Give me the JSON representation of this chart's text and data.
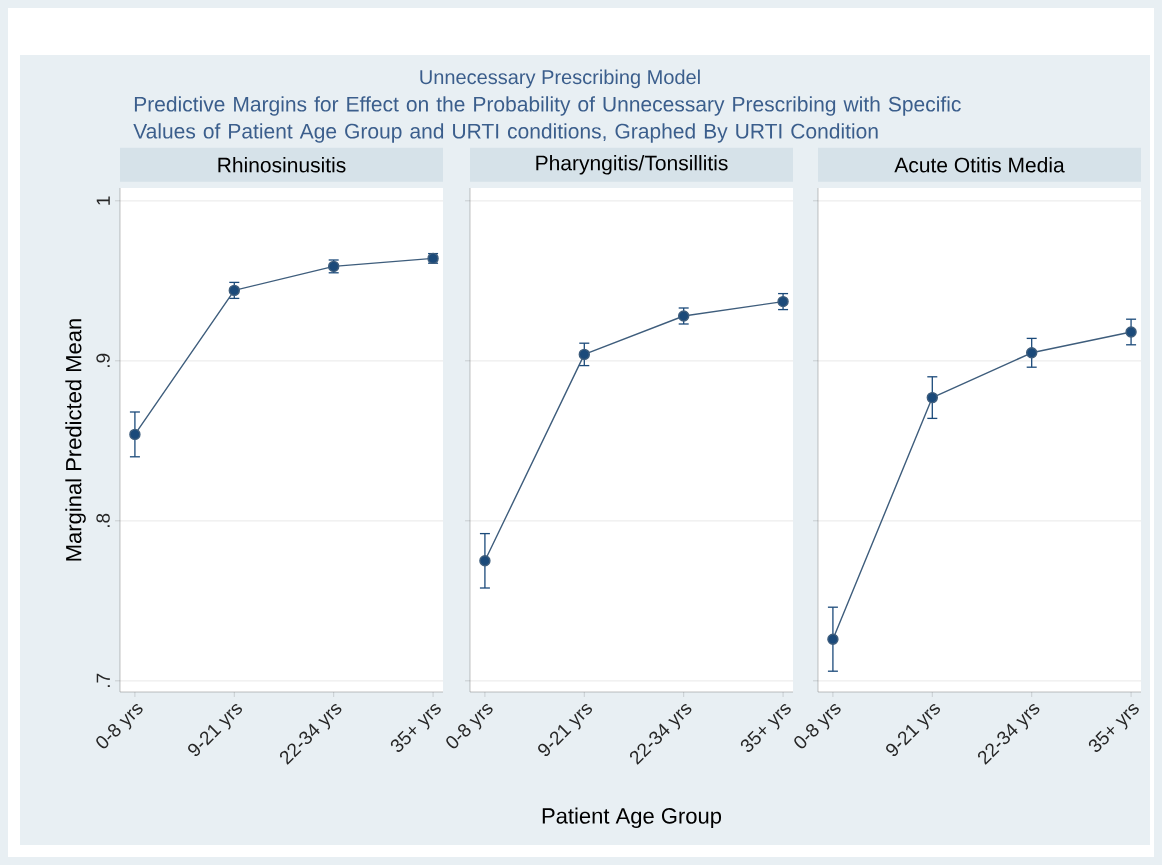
{
  "chart_data": [
    {
      "type": "line",
      "title": "Rhinosinusitis",
      "ylabel": "Marginal Predicted Mean",
      "categories": [
        "0-8 yrs",
        "9-21 yrs",
        "22-34 yrs",
        "35+ yrs"
      ],
      "series": [
        {
          "color": "#1b4a7a",
          "values": [
            0.854,
            0.944,
            0.959,
            0.964
          ],
          "errors": [
            0.014,
            0.005,
            0.004,
            0.003
          ]
        }
      ],
      "ylim": [
        0.693,
        1.008
      ],
      "yticks": [
        {
          "value": 0.7,
          "label": ".7"
        },
        {
          "value": 0.8,
          "label": ".8"
        },
        {
          "value": 0.9,
          "label": ".9"
        },
        {
          "value": 1,
          "label": "1"
        }
      ],
      "grid": "y",
      "marker": "circle",
      "annotations": [
        "Unnecessary Prescribing Model",
        "Predictive Margins for Effect on the Probability of Unnecessary Prescribing with Specific Values of Patient Age Group and URTI conditions, Graphed By URTI Condition"
      ]
    },
    {
      "type": "line",
      "title": "Pharyngitis/Tonsillitis",
      "xlabel": "Patient Age Group",
      "categories": [
        "0-8 yrs",
        "9-21 yrs",
        "22-34 yrs",
        "35+ yrs"
      ],
      "series": [
        {
          "color": "#1b4a7a",
          "values": [
            0.775,
            0.904,
            0.928,
            0.937
          ],
          "errors": [
            0.017,
            0.007,
            0.005,
            0.005
          ]
        }
      ],
      "ylim": [
        0.693,
        1.008
      ],
      "yticks": [
        0.7,
        0.8,
        0.9,
        1
      ],
      "grid": "y",
      "marker": "circle",
      "tick_labels": "x"
    },
    {
      "type": "line",
      "title": "Acute Otitis Media",
      "categories": [
        "0-8 yrs",
        "9-21 yrs",
        "22-34 yrs",
        "35+ yrs"
      ],
      "series": [
        {
          "color": "#1b4a7a",
          "values": [
            0.726,
            0.877,
            0.905,
            0.918
          ],
          "errors": [
            0.02,
            0.013,
            0.009,
            0.008
          ]
        }
      ],
      "ylim": [
        0.693,
        1.008
      ],
      "yticks": [
        0.7,
        0.8,
        0.9,
        1
      ],
      "grid": "y",
      "marker": "circle",
      "tick_labels": "x"
    }
  ]
}
